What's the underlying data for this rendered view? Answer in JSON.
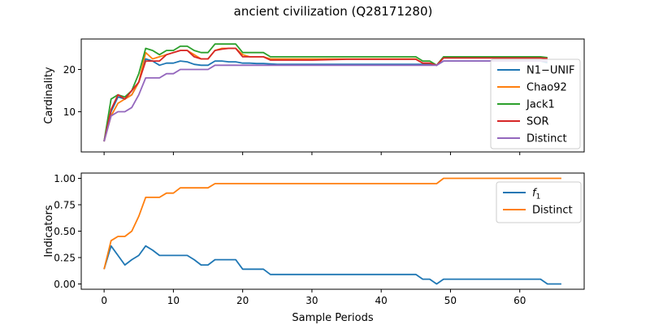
{
  "title": "ancient civilization (Q28171280)",
  "chart_data": [
    {
      "type": "line",
      "ylabel": "Cardinality",
      "xlim": [
        -3.3,
        69.3
      ],
      "ylim": [
        0.5,
        27.2
      ],
      "yticks": [
        10,
        20
      ],
      "ytick_labels": [
        "10",
        "20"
      ],
      "legend": "right",
      "series": [
        {
          "name": "N1−UNIF",
          "color": "#1f77b4",
          "x": [
            0,
            1,
            2,
            3,
            4,
            5,
            6,
            7,
            8,
            9,
            10,
            11,
            12,
            13,
            14,
            15,
            16,
            17,
            18,
            19,
            20,
            21,
            22,
            23,
            24,
            25,
            30,
            35,
            40,
            45,
            46,
            47,
            48,
            49,
            50,
            55,
            60,
            63,
            64
          ],
          "y": [
            3,
            10,
            13.5,
            13,
            14,
            17,
            22.5,
            22,
            21,
            21.5,
            21.5,
            22,
            21.8,
            21.2,
            21,
            21,
            22,
            22,
            21.8,
            21.8,
            21.5,
            21.5,
            21.4,
            21.4,
            21.3,
            21.2,
            21.2,
            21.2,
            21.2,
            21.2,
            21.2,
            21.2,
            21,
            22,
            22,
            22,
            22,
            22,
            21.6
          ]
        },
        {
          "name": "Chao92",
          "color": "#ff7f0e",
          "x": [
            0,
            1,
            2,
            3,
            4,
            5,
            6,
            7,
            8,
            9,
            10,
            11,
            12,
            13,
            14,
            15,
            16,
            17,
            18,
            19,
            20,
            21,
            22,
            23,
            24,
            25,
            30,
            35,
            40,
            45,
            46,
            47,
            48,
            49,
            50,
            55,
            60,
            63,
            64
          ],
          "y": [
            3,
            9,
            12,
            13,
            14,
            17,
            24,
            22.5,
            23,
            23.5,
            24,
            24.5,
            24.5,
            23.5,
            22.5,
            22.5,
            24.5,
            25,
            25,
            25,
            23.5,
            23,
            23,
            23,
            22.5,
            22.5,
            22.5,
            22.5,
            22.5,
            22.5,
            21.5,
            21.5,
            21,
            22.8,
            22.8,
            22.8,
            22.8,
            22.8,
            22.5
          ]
        },
        {
          "name": "Jack1",
          "color": "#2ca02c",
          "x": [
            0,
            1,
            2,
            3,
            4,
            5,
            6,
            7,
            8,
            9,
            10,
            11,
            12,
            13,
            14,
            15,
            16,
            17,
            18,
            19,
            20,
            21,
            22,
            23,
            24,
            25,
            30,
            35,
            40,
            45,
            46,
            47,
            48,
            49,
            50,
            55,
            60,
            63,
            64
          ],
          "y": [
            3,
            13,
            14,
            13.5,
            15,
            19,
            25,
            24.5,
            23.5,
            24.5,
            24.5,
            25.5,
            25.5,
            24.5,
            24,
            24,
            26,
            26,
            26,
            26,
            24,
            24,
            24,
            24,
            23,
            23,
            23,
            23,
            23,
            23,
            22,
            22,
            21,
            23,
            23,
            23,
            23,
            23,
            22.8
          ]
        },
        {
          "name": "SOR",
          "color": "#d62728",
          "x": [
            0,
            1,
            2,
            3,
            4,
            5,
            6,
            7,
            8,
            9,
            10,
            11,
            12,
            13,
            14,
            15,
            16,
            17,
            18,
            19,
            20,
            21,
            22,
            23,
            24,
            25,
            30,
            35,
            40,
            45,
            46,
            47,
            48,
            49,
            50,
            55,
            60,
            63,
            64
          ],
          "y": [
            3,
            10.5,
            14,
            13,
            15,
            17,
            22,
            22,
            22,
            23.5,
            24,
            24.5,
            24.5,
            23,
            22.5,
            22.5,
            24.5,
            24.8,
            25,
            25,
            23,
            23,
            23,
            23,
            22.2,
            22.2,
            22.2,
            22.4,
            22.4,
            22.4,
            21.5,
            21.5,
            21,
            22.7,
            22.7,
            22.7,
            22.7,
            22.7,
            22.6
          ]
        },
        {
          "name": "Distinct",
          "color": "#9467bd",
          "x": [
            0,
            1,
            2,
            3,
            4,
            5,
            6,
            7,
            8,
            9,
            10,
            11,
            12,
            13,
            14,
            15,
            16,
            17,
            18,
            19,
            20,
            25,
            30,
            35,
            40,
            45,
            46,
            47,
            48,
            49,
            50,
            55,
            60,
            63,
            64
          ],
          "y": [
            3,
            9,
            10,
            10,
            11,
            14,
            18,
            18,
            18,
            19,
            19,
            20,
            20,
            20,
            20,
            20,
            21,
            21,
            21,
            21,
            21,
            21,
            21,
            21,
            21,
            21,
            21,
            21,
            21,
            22,
            22,
            22,
            22,
            22,
            22
          ]
        }
      ]
    },
    {
      "type": "line",
      "xlabel": "Sample Periods",
      "ylabel": "Indicators",
      "xlim": [
        -3.3,
        69.3
      ],
      "ylim": [
        -0.05,
        1.05
      ],
      "xticks": [
        0,
        10,
        20,
        30,
        40,
        50,
        60
      ],
      "xtick_labels": [
        "0",
        "10",
        "20",
        "30",
        "40",
        "50",
        "60"
      ],
      "yticks": [
        0,
        0.25,
        0.5,
        0.75,
        1.0
      ],
      "ytick_labels": [
        "0.00",
        "0.25",
        "0.50",
        "0.75",
        "1.00"
      ],
      "legend": "upper right",
      "series": [
        {
          "name": "f1",
          "label_main": "f",
          "label_sub": "1",
          "color": "#1f77b4",
          "x": [
            0,
            1,
            2,
            3,
            4,
            5,
            6,
            7,
            8,
            9,
            10,
            11,
            12,
            13,
            14,
            15,
            16,
            17,
            18,
            19,
            20,
            21,
            22,
            23,
            24,
            45,
            46,
            47,
            48,
            49,
            50,
            55,
            60,
            63,
            64,
            65,
            66
          ],
          "y": [
            0.14,
            0.36,
            0.27,
            0.18,
            0.23,
            0.27,
            0.36,
            0.32,
            0.27,
            0.27,
            0.27,
            0.27,
            0.27,
            0.23,
            0.18,
            0.18,
            0.23,
            0.23,
            0.23,
            0.23,
            0.14,
            0.14,
            0.14,
            0.14,
            0.09,
            0.09,
            0.045,
            0.045,
            0,
            0.045,
            0.045,
            0.045,
            0.045,
            0.045,
            0,
            0,
            0
          ]
        },
        {
          "name": "Distinct",
          "label_main": "Distinct",
          "label_sub": "",
          "color": "#ff7f0e",
          "x": [
            0,
            1,
            2,
            3,
            4,
            5,
            6,
            7,
            8,
            9,
            10,
            11,
            12,
            13,
            14,
            15,
            16,
            20,
            25,
            30,
            35,
            40,
            45,
            46,
            47,
            48,
            49,
            50,
            55,
            60,
            63,
            64,
            65,
            66
          ],
          "y": [
            0.14,
            0.41,
            0.45,
            0.45,
            0.5,
            0.64,
            0.82,
            0.82,
            0.82,
            0.86,
            0.86,
            0.91,
            0.91,
            0.91,
            0.91,
            0.91,
            0.95,
            0.95,
            0.95,
            0.95,
            0.95,
            0.95,
            0.95,
            0.95,
            0.95,
            0.95,
            1,
            1,
            1,
            1,
            1,
            1,
            1,
            1
          ]
        }
      ]
    }
  ]
}
